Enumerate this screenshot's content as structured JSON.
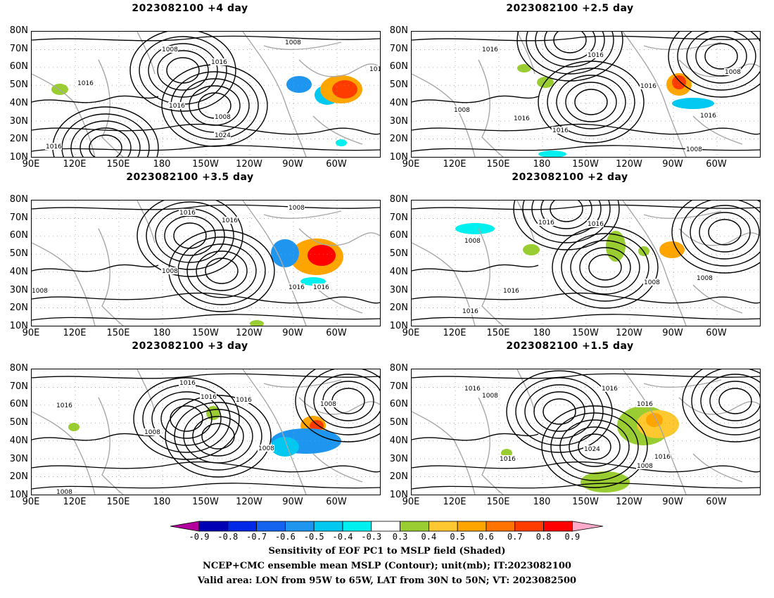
{
  "panels": [
    {
      "title": "2023082100  +4 day",
      "contour_labels": [
        "1008",
        "1016",
        "1016",
        "1016",
        "1016",
        "1008",
        "1024",
        "1016",
        "1008"
      ]
    },
    {
      "title": "2023082100  +2.5 day",
      "contour_labels": [
        "1016",
        "1016",
        "1008",
        "1016",
        "1008",
        "1016",
        "1016",
        "1016",
        "1008"
      ]
    },
    {
      "title": "2023082100  +3.5 day",
      "contour_labels": [
        "1016",
        "1016",
        "1008",
        "1008",
        "1008",
        "1016",
        "1016"
      ]
    },
    {
      "title": "2023082100  +2 day",
      "contour_labels": [
        "1016",
        "1016",
        "1008",
        "1016",
        "1008",
        "1008",
        "1016"
      ]
    },
    {
      "title": "2023082100  +3 day",
      "contour_labels": [
        "1016",
        "1016",
        "1016",
        "1016",
        "1008",
        "1008",
        "1008",
        "1008"
      ]
    },
    {
      "title": "2023082100  +1.5 day",
      "contour_labels": [
        "1016",
        "1008",
        "1016",
        "1016",
        "1024",
        "1016",
        "1008",
        "1016"
      ]
    }
  ],
  "lat_labels": [
    "80N",
    "70N",
    "60N",
    "50N",
    "40N",
    "30N",
    "20N",
    "10N"
  ],
  "lon_labels": [
    "90E",
    "120E",
    "150E",
    "180",
    "150W",
    "120W",
    "90W",
    "60W"
  ],
  "colorbar": {
    "levels": [
      "-0.9",
      "-0.8",
      "-0.7",
      "-0.6",
      "-0.5",
      "-0.4",
      "-0.3",
      "0.3",
      "0.4",
      "0.5",
      "0.6",
      "0.7",
      "0.8",
      "0.9"
    ],
    "colors": [
      "#b4009e",
      "#0000b4",
      "#0028e6",
      "#1464f0",
      "#1e96f0",
      "#00c8f0",
      "#00f0f0",
      "#ffffff",
      "#9acd32",
      "#fdc830",
      "#ffa500",
      "#ff7300",
      "#ff3c00",
      "#ff0000",
      "#ffaac8"
    ]
  },
  "caption": {
    "line1": "Sensitivity of EOF PC1 to MSLP field (Shaded)",
    "line2": "NCEP+CMC ensemble mean MSLP (Contour); unit(mb); IT:2023082100",
    "line3": "Valid area: LON from 95W to 65W, LAT from 30N to 50N; VT: 2023082500"
  }
}
